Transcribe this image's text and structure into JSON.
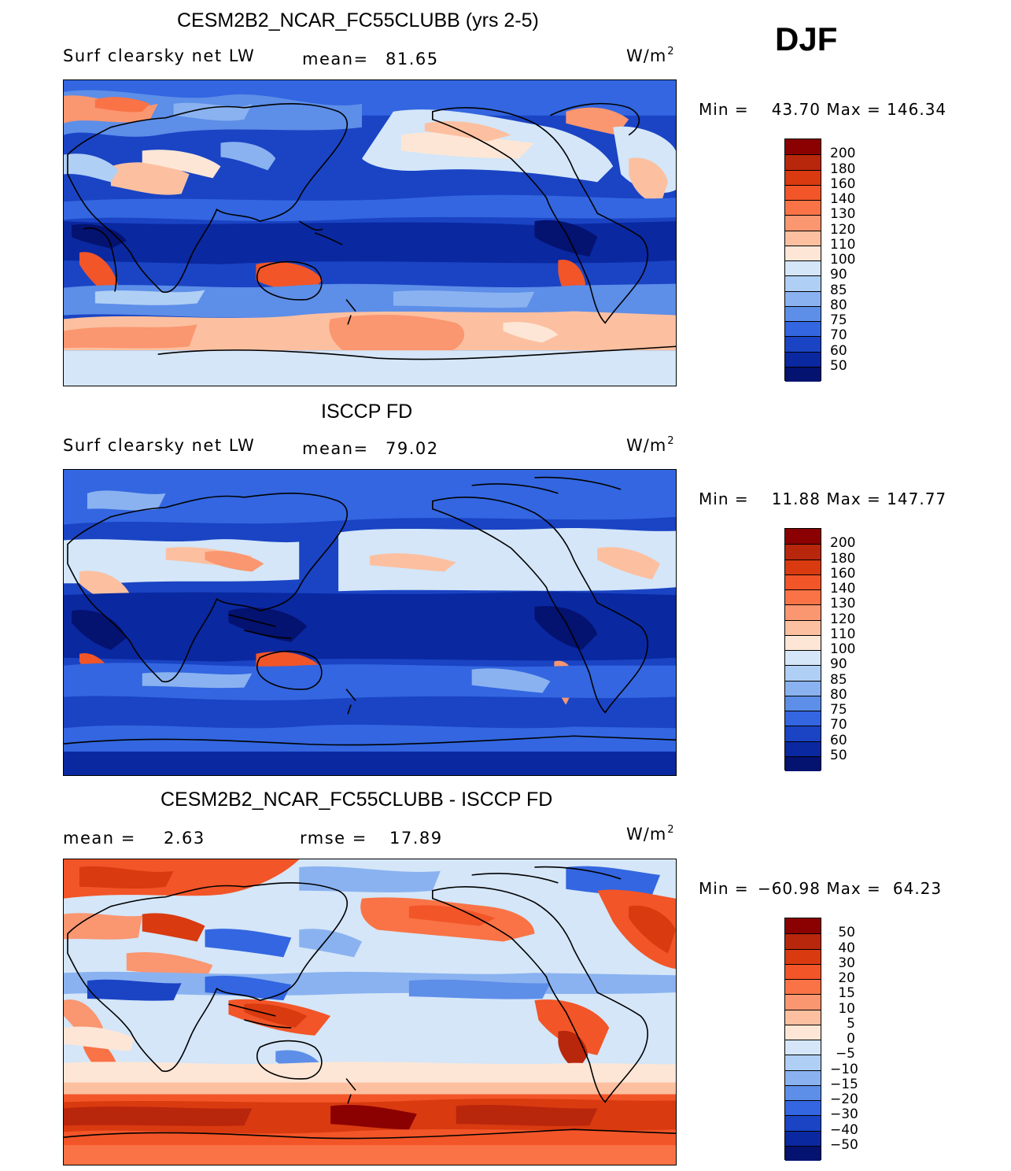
{
  "season": "DJF",
  "units_base": "W/m",
  "units_sup": "2",
  "chart_data": [
    {
      "type": "heatmap",
      "title": "CESM2B2_NCAR_FC55CLUBB (yrs 2-5)",
      "variable": "Surf clearsky net LW",
      "mean_label": "mean=",
      "mean_value": "81.65",
      "min_label": "Min =",
      "min_value": "43.70",
      "max_label": "Max =",
      "max_value": "146.34",
      "colorbar_levels": [
        "200",
        "180",
        "160",
        "140",
        "130",
        "120",
        "110",
        "100",
        "90",
        "85",
        "80",
        "75",
        "70",
        "60",
        "50"
      ],
      "colorbar_colors": [
        "#8b0000",
        "#b8260c",
        "#d93a10",
        "#f25528",
        "#f97346",
        "#fa9670",
        "#fcc0a0",
        "#fde6d6",
        "#d4e6f8",
        "#b0cff5",
        "#8ab2f0",
        "#5d8ee8",
        "#3366e0",
        "#1a44c4",
        "#0a28a0",
        "#041270"
      ]
    },
    {
      "type": "heatmap",
      "title": "ISCCP FD",
      "variable": "Surf clearsky net LW",
      "mean_label": "mean=",
      "mean_value": "79.02",
      "min_label": "Min =",
      "min_value": "11.88",
      "max_label": "Max =",
      "max_value": "147.77",
      "colorbar_levels": [
        "200",
        "180",
        "160",
        "140",
        "130",
        "120",
        "110",
        "100",
        "90",
        "85",
        "80",
        "75",
        "70",
        "60",
        "50"
      ],
      "colorbar_colors": [
        "#8b0000",
        "#b8260c",
        "#d93a10",
        "#f25528",
        "#f97346",
        "#fa9670",
        "#fcc0a0",
        "#fde6d6",
        "#d4e6f8",
        "#b0cff5",
        "#8ab2f0",
        "#5d8ee8",
        "#3366e0",
        "#1a44c4",
        "#0a28a0",
        "#041270"
      ]
    },
    {
      "type": "heatmap",
      "title": "CESM2B2_NCAR_FC55CLUBB - ISCCP FD",
      "variable": "",
      "mean_label": "mean =",
      "mean_value": "2.63",
      "rmse_label": "rmse =",
      "rmse_value": "17.89",
      "min_label": "Min =",
      "min_value": "−60.98",
      "max_label": "Max =",
      "max_value": "64.23",
      "colorbar_levels": [
        "50",
        "40",
        "30",
        "20",
        "15",
        "10",
        "5",
        "0",
        "−5",
        "−10",
        "−15",
        "−20",
        "−30",
        "−40",
        "−50"
      ],
      "colorbar_colors": [
        "#8b0000",
        "#b8260c",
        "#d93a10",
        "#f25528",
        "#f97346",
        "#fa9670",
        "#fcc0a0",
        "#fde6d6",
        "#d4e6f8",
        "#b0cff5",
        "#8ab2f0",
        "#5d8ee8",
        "#3366e0",
        "#1a44c4",
        "#0a28a0",
        "#041270"
      ]
    }
  ]
}
